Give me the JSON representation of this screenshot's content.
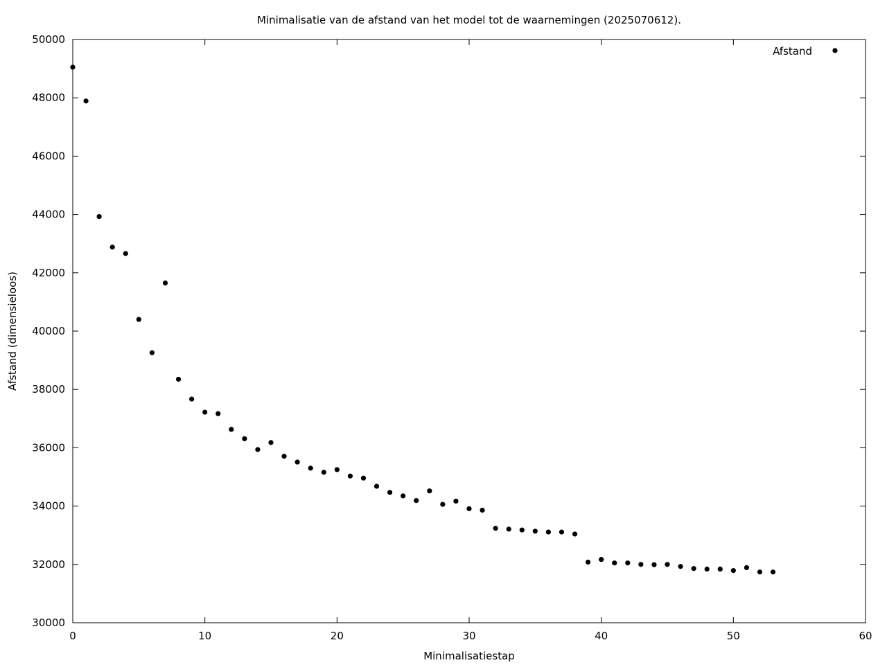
{
  "chart_data": {
    "type": "scatter",
    "title": "Minimalisatie van de afstand van het model tot de waarnemingen (2025070612).",
    "xlabel": "Minimalisatiestap",
    "ylabel": "Afstand (dimensieloos)",
    "xlim": [
      0,
      60
    ],
    "ylim": [
      30000,
      50000
    ],
    "xticks": [
      0,
      10,
      20,
      30,
      40,
      50,
      60
    ],
    "yticks": [
      30000,
      32000,
      34000,
      36000,
      38000,
      40000,
      42000,
      44000,
      46000,
      48000,
      50000
    ],
    "grid": false,
    "legend_position": "top-right",
    "series": [
      {
        "name": "Afstand",
        "color": "#000000",
        "marker": "filled-circle",
        "x": [
          0,
          1,
          2,
          3,
          4,
          5,
          6,
          7,
          8,
          9,
          10,
          11,
          12,
          13,
          14,
          15,
          16,
          17,
          18,
          19,
          20,
          21,
          22,
          23,
          24,
          25,
          26,
          27,
          28,
          29,
          30,
          31,
          32,
          33,
          34,
          35,
          36,
          37,
          38,
          39,
          40,
          41,
          42,
          43,
          44,
          45,
          46,
          47,
          48,
          49,
          50,
          51,
          52,
          53
        ],
        "y": [
          49050,
          47890,
          43930,
          42880,
          42660,
          40400,
          39260,
          41650,
          38350,
          37670,
          37220,
          37170,
          36630,
          36310,
          35940,
          36180,
          35710,
          35510,
          35300,
          35160,
          35250,
          35030,
          34960,
          34680,
          34470,
          34350,
          34190,
          34520,
          34060,
          34170,
          33910,
          33860,
          33240,
          33210,
          33180,
          33140,
          33110,
          33110,
          33040,
          32080,
          32170,
          32050,
          32050,
          32000,
          31990,
          32000,
          31930,
          31860,
          31840,
          31840,
          31790,
          31890,
          31740,
          31740
        ]
      }
    ]
  }
}
